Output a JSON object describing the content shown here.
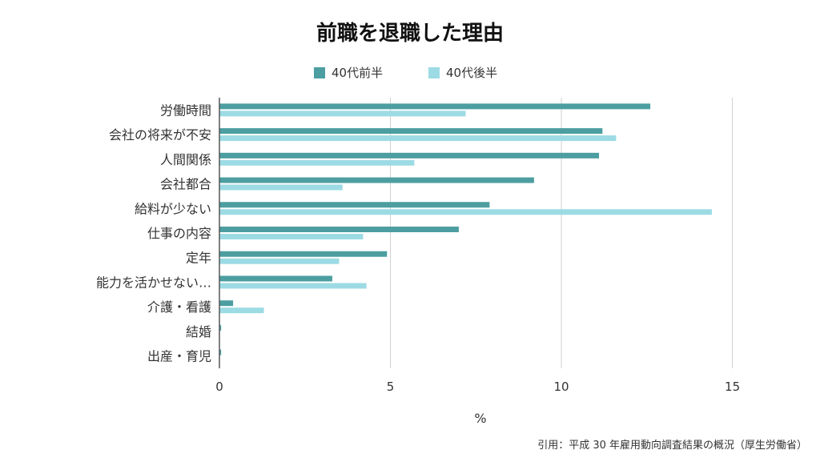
{
  "chart_data": {
    "type": "bar",
    "orientation": "horizontal",
    "title": "前職を退職した理由",
    "xlabel": "%",
    "ylabel": "",
    "xlim": [
      0,
      17
    ],
    "xticks": [
      0,
      5,
      10,
      15
    ],
    "grid": true,
    "legend_position": "top-center",
    "categories": [
      "労働時間",
      "会社の将来が不安",
      "人間関係",
      "会社都合",
      "給料が少ない",
      "仕事の内容",
      "定年",
      "能力を活かせない…",
      "介護・看護",
      "結婚",
      "出産・育児"
    ],
    "series": [
      {
        "name": "40代前半",
        "color": "#4c9ea0",
        "values": [
          12.6,
          11.2,
          11.1,
          9.2,
          7.9,
          7.0,
          4.9,
          3.3,
          0.4,
          0.05,
          0.05
        ]
      },
      {
        "name": "40代後半",
        "color": "#9ddbe4",
        "values": [
          7.2,
          11.6,
          5.7,
          3.6,
          14.4,
          4.2,
          3.5,
          4.3,
          1.3,
          0,
          0
        ]
      }
    ]
  },
  "source_note": "引用：平成 30 年雇用動向調査結果の概況（厚生労働省）"
}
